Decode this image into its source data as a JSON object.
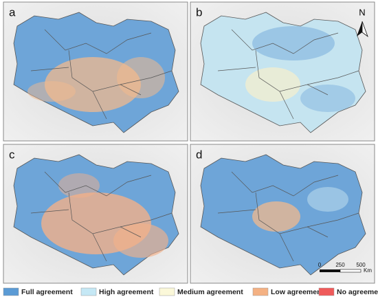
{
  "panels": [
    {
      "label": "a"
    },
    {
      "label": "b"
    },
    {
      "label": "c"
    },
    {
      "label": "d"
    }
  ],
  "north": "N",
  "scale_bar": {
    "ticks": [
      "0",
      "250",
      "500"
    ],
    "unit": "Km"
  },
  "legend": [
    {
      "name": "Full agreement",
      "color": "#5b9bd5"
    },
    {
      "name": "High agreement",
      "color": "#c5e8f5"
    },
    {
      "name": "Medium agreement",
      "color": "#fbf8d9"
    },
    {
      "name": "Low agreement",
      "color": "#f4b183"
    },
    {
      "name": "No agreement",
      "color": "#ef5a5a"
    }
  ]
}
